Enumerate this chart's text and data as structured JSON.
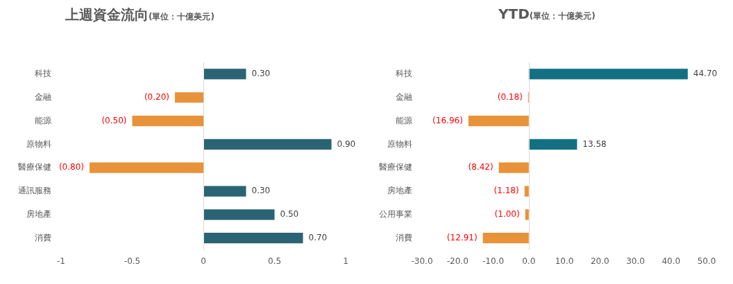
{
  "chart_data": [
    {
      "type": "bar",
      "orientation": "horizontal",
      "title": "上週資金流向",
      "subtitle": "(單位：十億美元)",
      "categories": [
        "科技",
        "金融",
        "能源",
        "原物料",
        "醫療保健",
        "通訊服務",
        "房地產",
        "消費"
      ],
      "values": [
        0.3,
        -0.2,
        -0.5,
        0.9,
        -0.8,
        0.3,
        0.5,
        0.7
      ],
      "colors": [
        "#2a6474",
        "#e8923a",
        "#e8923a",
        "#2a6474",
        "#e8923a",
        "#2a6474",
        "#2a6474",
        "#2a6474"
      ],
      "value_labels": [
        "0.30",
        "(0.20)",
        "(0.50)",
        "0.90",
        "(0.80)",
        "0.30",
        "0.50",
        "0.70"
      ],
      "xlim": [
        -1,
        1
      ],
      "xticks": [
        -1,
        -0.5,
        0,
        0.5,
        1
      ],
      "ref_lines": [
        {
          "axis": "x",
          "value": 0,
          "color": "#d9d9d9"
        }
      ],
      "grid": false,
      "legend": false
    },
    {
      "type": "bar",
      "orientation": "horizontal",
      "title": "YTD",
      "subtitle": "(單位：十億美元)",
      "categories": [
        "科技",
        "金融",
        "能源",
        "原物料",
        "醫療保健",
        "房地產",
        "公用事業",
        "消費"
      ],
      "values": [
        44.7,
        -0.18,
        -16.96,
        13.58,
        -8.42,
        -1.18,
        -1.0,
        -12.91
      ],
      "colors": [
        "#137082",
        "#e8923a",
        "#e8923a",
        "#137082",
        "#e8923a",
        "#e8923a",
        "#e8923a",
        "#e8923a"
      ],
      "value_labels": [
        "44.70",
        "(0.18)",
        "(16.96)",
        "13.58",
        "(8.42)",
        "(1.18)",
        "(1.00)",
        "(12.91)"
      ],
      "xlim": [
        -30,
        50
      ],
      "xticks": [
        {
          "value": -30,
          "label": "-30.0"
        },
        {
          "value": -20,
          "label": "-20.0"
        },
        {
          "value": -10,
          "label": "-10.0"
        },
        {
          "value": 0,
          "label": "0.0"
        },
        {
          "value": 10,
          "label": "10.0"
        },
        {
          "value": 20,
          "label": "20.0"
        },
        {
          "value": 30,
          "label": "30.0"
        },
        {
          "value": 40,
          "label": "40.0"
        },
        {
          "value": 50,
          "label": "50.0"
        }
      ],
      "ref_lines": [
        {
          "axis": "x",
          "value": 0,
          "color": "#d9d9d9"
        }
      ],
      "grid": false,
      "legend": false
    }
  ]
}
